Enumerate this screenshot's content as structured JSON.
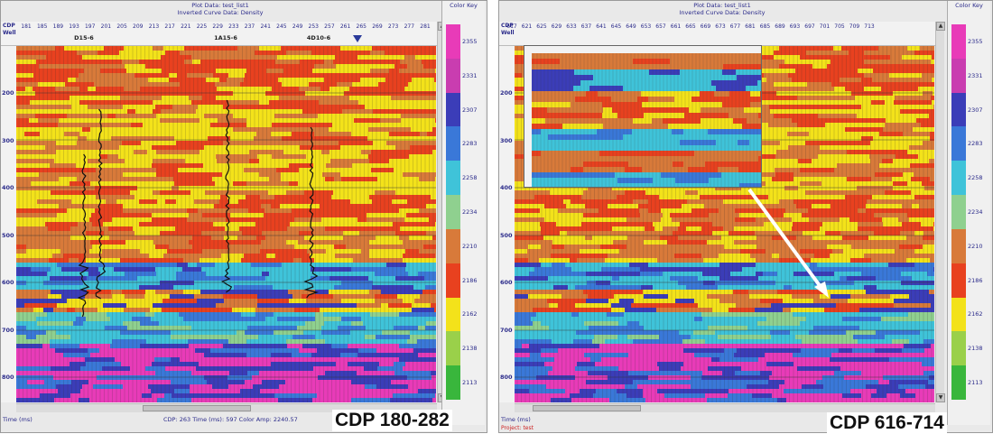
{
  "left_panel": {
    "title_lines": [
      "Plot Data: test_list1",
      "Inverted Curve Data: Density"
    ],
    "cdp_label": "CDP",
    "well_label": "Well",
    "cdp_ticks": [
      "181",
      "185",
      "189",
      "193",
      "197",
      "201",
      "205",
      "209",
      "213",
      "217",
      "221",
      "225",
      "229",
      "233",
      "237",
      "241",
      "245",
      "249",
      "253",
      "257",
      "261",
      "265",
      "269",
      "273",
      "277",
      "281"
    ],
    "wells": [
      "D15-6",
      "1A15-6",
      "4D10-6"
    ],
    "time_ticks": [
      "200",
      "300",
      "400",
      "500",
      "600",
      "700",
      "800"
    ],
    "status_left": "Time (ms)",
    "status_mid": "CDP: 263  Time (ms): 597  Color Amp: 2240.57",
    "caption": "CDP 180-282"
  },
  "right_panel": {
    "title_lines": [
      "Plot Data: test_list1",
      "Inverted Curve Data: Density"
    ],
    "cdp_label": "CDP",
    "well_label": "Well",
    "cdp_ticks": [
      "617",
      "621",
      "625",
      "629",
      "633",
      "637",
      "641",
      "645",
      "649",
      "653",
      "657",
      "661",
      "665",
      "669",
      "673",
      "677",
      "681",
      "685",
      "689",
      "693",
      "697",
      "701",
      "705",
      "709",
      "713"
    ],
    "time_ticks": [
      "200",
      "300",
      "400",
      "500",
      "600",
      "700",
      "800"
    ],
    "status_left": "Time (ms)",
    "project": "Project: test",
    "caption": "CDP 616-714"
  },
  "color_key": {
    "title": "Color Key",
    "labels": [
      "2355",
      "2331",
      "2307",
      "2283",
      "2258",
      "2234",
      "2210",
      "2186",
      "2162",
      "2138",
      "2113"
    ],
    "colors": [
      "#e83bb8",
      "#c93db0",
      "#3b3db8",
      "#3a78d8",
      "#3fc3d9",
      "#8fd08f",
      "#d87a3a",
      "#e8411f",
      "#f3e21a",
      "#9ad04a",
      "#39b63c"
    ]
  }
}
